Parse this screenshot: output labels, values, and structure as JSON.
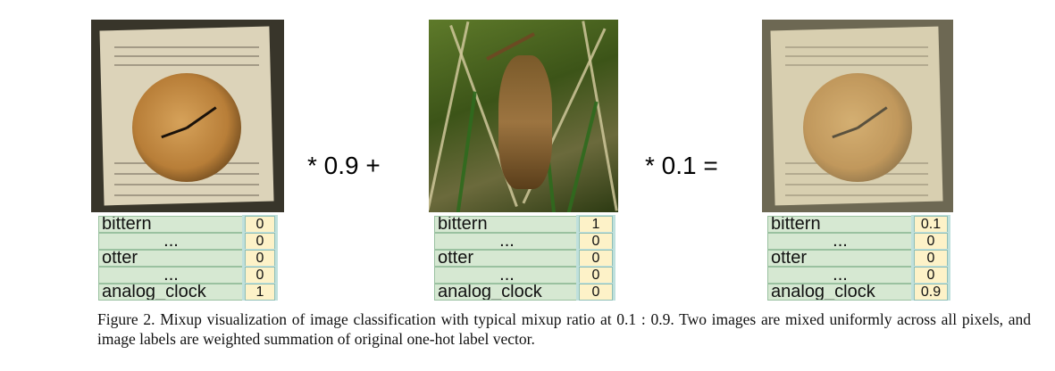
{
  "operators": {
    "first": "* 0.9 +",
    "second": "* 0.1 ="
  },
  "panels": [
    {
      "image_icon": "alarm-clock-on-book-image",
      "labels": [
        {
          "name": "bittern",
          "value": "0"
        },
        {
          "name": "...",
          "value": "0"
        },
        {
          "name": "otter",
          "value": "0"
        },
        {
          "name": "...",
          "value": "0"
        },
        {
          "name": "analog_clock",
          "value": "1"
        }
      ]
    },
    {
      "image_icon": "bittern-bird-in-reeds-image",
      "labels": [
        {
          "name": "bittern",
          "value": "1"
        },
        {
          "name": "...",
          "value": "0"
        },
        {
          "name": "otter",
          "value": "0"
        },
        {
          "name": "...",
          "value": "0"
        },
        {
          "name": "analog_clock",
          "value": "0"
        }
      ]
    },
    {
      "image_icon": "mixed-clock-bird-image",
      "labels": [
        {
          "name": "bittern",
          "value": "0.1"
        },
        {
          "name": "...",
          "value": "0"
        },
        {
          "name": "otter",
          "value": "0"
        },
        {
          "name": "...",
          "value": "0"
        },
        {
          "name": "analog_clock",
          "value": "0.9"
        }
      ]
    }
  ],
  "caption": "Figure 2. Mixup visualization of image classification with typical mixup ratio at 0.1 : 0.9. Two images are mixed uniformly across all pixels, and image labels are weighted summation of original one-hot label vector."
}
